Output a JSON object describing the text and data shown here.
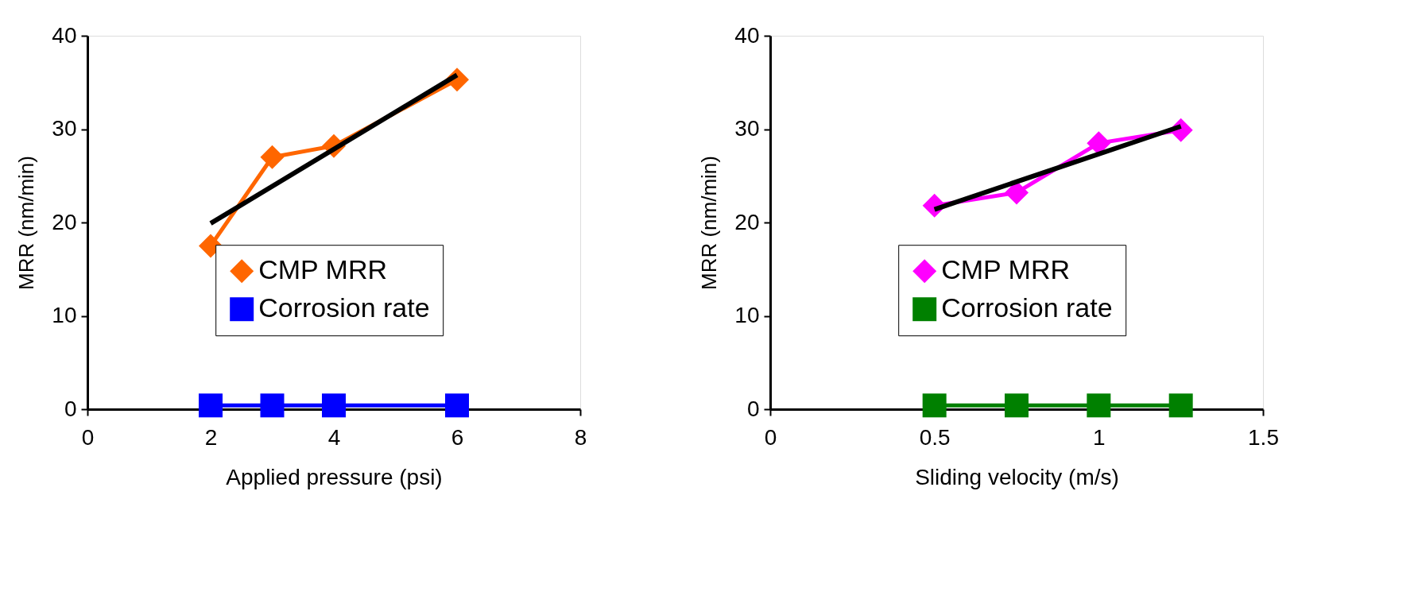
{
  "chart_data": [
    {
      "type": "line",
      "xlabel": "Applied pressure (psi)",
      "ylabel": "MRR (nm/min)",
      "xlim": [
        0,
        8
      ],
      "xticks": [
        0,
        2,
        4,
        6,
        8
      ],
      "ylim": [
        0,
        40
      ],
      "yticks": [
        0,
        10,
        20,
        30,
        40
      ],
      "legend": "bottom",
      "x": [
        2,
        3,
        4,
        6
      ],
      "series": [
        {
          "name": "CMP MRR",
          "color": "#ff6600",
          "marker": "diamond",
          "values": [
            17.5,
            27.0,
            28.2,
            35.3
          ]
        },
        {
          "name": "Corrosion rate",
          "color": "#0000ff",
          "marker": "square",
          "values": [
            0.4,
            0.4,
            0.4,
            0.4
          ]
        },
        {
          "type": "line",
          "color": "#000000",
          "marker": "none",
          "x": [
            2,
            6
          ],
          "values": [
            19.9,
            35.8
          ]
        }
      ]
    },
    {
      "type": "line",
      "xlabel": "Sliding velocity (m/s)",
      "ylabel": "MRR (nm/min)",
      "xlim": [
        0,
        1.5
      ],
      "xticks": [
        0,
        0.5,
        1,
        1.5
      ],
      "ylim": [
        0,
        40
      ],
      "yticks": [
        0,
        10,
        20,
        30,
        40
      ],
      "legend": "bottom",
      "x": [
        0.5,
        0.75,
        1,
        1.25
      ],
      "series": [
        {
          "name": "CMP MRR",
          "color": "#ff00ff",
          "marker": "diamond",
          "values": [
            21.8,
            23.2,
            28.5,
            29.9
          ]
        },
        {
          "name": "Corrosion rate",
          "color": "#008000",
          "marker": "square",
          "values": [
            0.4,
            0.4,
            0.4,
            0.4
          ]
        },
        {
          "type": "line",
          "color": "#000000",
          "marker": "none",
          "x": [
            0.5,
            1.25
          ],
          "values": [
            21.4,
            30.3
          ]
        }
      ]
    }
  ]
}
